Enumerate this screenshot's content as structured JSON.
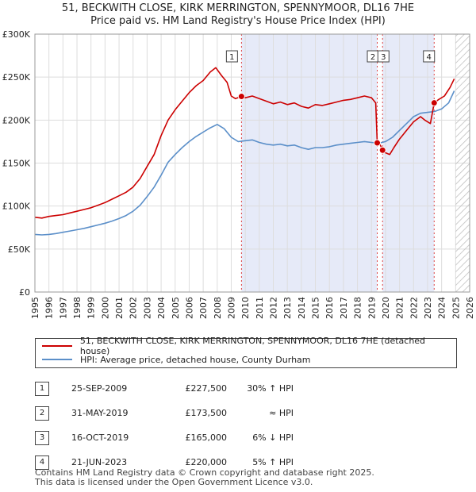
{
  "header": {
    "title_line1": "51, BECKWITH CLOSE, KIRK MERRINGTON, SPENNYMOOR, DL16 7HE",
    "title_line2": "Price paid vs. HM Land Registry's House Price Index (HPI)"
  },
  "chart_data": {
    "type": "line",
    "title": "51, BECKWITH CLOSE, KIRK MERRINGTON, SPENNYMOOR, DL16 7HE — Price paid vs. HM Land Registry's House Price Index (HPI)",
    "xlim": [
      1995,
      2026
    ],
    "ylim": [
      0,
      300000
    ],
    "x_ticks": [
      "1995",
      "1996",
      "1997",
      "1998",
      "1999",
      "2000",
      "2001",
      "2002",
      "2003",
      "2004",
      "2005",
      "2006",
      "2007",
      "2008",
      "2009",
      "2010",
      "2011",
      "2012",
      "2013",
      "2014",
      "2015",
      "2016",
      "2017",
      "2018",
      "2019",
      "2020",
      "2021",
      "2022",
      "2023",
      "2024",
      "2025",
      "2026"
    ],
    "y_ticks": [
      {
        "value": 0,
        "label": "£0"
      },
      {
        "value": 50000,
        "label": "£50K"
      },
      {
        "value": 100000,
        "label": "£100K"
      },
      {
        "value": 150000,
        "label": "£150K"
      },
      {
        "value": 200000,
        "label": "£200K"
      },
      {
        "value": 250000,
        "label": "£250K"
      },
      {
        "value": 300000,
        "label": "£300K"
      }
    ],
    "grid": true,
    "forecast_start": 2025.0,
    "shaded_ranges": [
      [
        2009.73,
        2019.41
      ],
      [
        2019.79,
        2023.47
      ]
    ],
    "series": [
      {
        "name": "51, BECKWITH CLOSE, KIRK MERRINGTON, SPENNYMOOR, DL16 7HE (detached house)",
        "color": "#cc0000",
        "points": [
          [
            1995.0,
            87000
          ],
          [
            1995.5,
            86000
          ],
          [
            1996.0,
            88000
          ],
          [
            1996.5,
            89000
          ],
          [
            1997.0,
            90000
          ],
          [
            1997.5,
            92000
          ],
          [
            1998.0,
            94000
          ],
          [
            1998.5,
            96000
          ],
          [
            1999.0,
            98000
          ],
          [
            1999.5,
            101000
          ],
          [
            2000.0,
            104000
          ],
          [
            2000.5,
            108000
          ],
          [
            2001.0,
            112000
          ],
          [
            2001.5,
            116000
          ],
          [
            2002.0,
            122000
          ],
          [
            2002.5,
            132000
          ],
          [
            2003.0,
            146000
          ],
          [
            2003.5,
            160000
          ],
          [
            2004.0,
            182000
          ],
          [
            2004.5,
            200000
          ],
          [
            2005.0,
            212000
          ],
          [
            2005.5,
            222000
          ],
          [
            2006.0,
            232000
          ],
          [
            2006.5,
            240000
          ],
          [
            2007.0,
            246000
          ],
          [
            2007.5,
            256000
          ],
          [
            2007.9,
            261000
          ],
          [
            2008.3,
            252000
          ],
          [
            2008.7,
            244000
          ],
          [
            2009.0,
            228000
          ],
          [
            2009.3,
            225000
          ],
          [
            2009.73,
            227500
          ],
          [
            2010.0,
            226000
          ],
          [
            2010.5,
            228000
          ],
          [
            2011.0,
            225000
          ],
          [
            2011.5,
            222000
          ],
          [
            2012.0,
            219000
          ],
          [
            2012.5,
            221000
          ],
          [
            2013.0,
            218000
          ],
          [
            2013.5,
            220000
          ],
          [
            2014.0,
            216000
          ],
          [
            2014.5,
            214000
          ],
          [
            2015.0,
            218000
          ],
          [
            2015.5,
            217000
          ],
          [
            2016.0,
            219000
          ],
          [
            2016.5,
            221000
          ],
          [
            2017.0,
            223000
          ],
          [
            2017.5,
            224000
          ],
          [
            2018.0,
            226000
          ],
          [
            2018.5,
            228000
          ],
          [
            2019.0,
            226000
          ],
          [
            2019.3,
            220000
          ],
          [
            2019.41,
            173500
          ],
          [
            2019.6,
            172000
          ],
          [
            2019.79,
            165000
          ],
          [
            2020.0,
            162000
          ],
          [
            2020.3,
            160000
          ],
          [
            2020.6,
            168000
          ],
          [
            2021.0,
            178000
          ],
          [
            2021.5,
            188000
          ],
          [
            2022.0,
            198000
          ],
          [
            2022.5,
            204000
          ],
          [
            2022.8,
            200000
          ],
          [
            2023.2,
            196000
          ],
          [
            2023.47,
            220000
          ],
          [
            2023.8,
            224000
          ],
          [
            2024.2,
            228000
          ],
          [
            2024.6,
            238000
          ],
          [
            2024.9,
            248000
          ]
        ]
      },
      {
        "name": "HPI: Average price, detached house, County Durham",
        "color": "#5b8fc9",
        "points": [
          [
            1995.0,
            67000
          ],
          [
            1995.5,
            66500
          ],
          [
            1996.0,
            67000
          ],
          [
            1996.5,
            68000
          ],
          [
            1997.0,
            69500
          ],
          [
            1997.5,
            71000
          ],
          [
            1998.0,
            72500
          ],
          [
            1998.5,
            74000
          ],
          [
            1999.0,
            76000
          ],
          [
            1999.5,
            78000
          ],
          [
            2000.0,
            80000
          ],
          [
            2000.5,
            82500
          ],
          [
            2001.0,
            85500
          ],
          [
            2001.5,
            89000
          ],
          [
            2002.0,
            94000
          ],
          [
            2002.5,
            101000
          ],
          [
            2003.0,
            111000
          ],
          [
            2003.5,
            122000
          ],
          [
            2004.0,
            136000
          ],
          [
            2004.5,
            151000
          ],
          [
            2005.0,
            160000
          ],
          [
            2005.5,
            168000
          ],
          [
            2006.0,
            175000
          ],
          [
            2006.5,
            181000
          ],
          [
            2007.0,
            186000
          ],
          [
            2007.5,
            191000
          ],
          [
            2008.0,
            195000
          ],
          [
            2008.5,
            190000
          ],
          [
            2009.0,
            180000
          ],
          [
            2009.5,
            175000
          ],
          [
            2010.0,
            176000
          ],
          [
            2010.5,
            177000
          ],
          [
            2011.0,
            174000
          ],
          [
            2011.5,
            172000
          ],
          [
            2012.0,
            171000
          ],
          [
            2012.5,
            172000
          ],
          [
            2013.0,
            170000
          ],
          [
            2013.5,
            171000
          ],
          [
            2014.0,
            168000
          ],
          [
            2014.5,
            166000
          ],
          [
            2015.0,
            168000
          ],
          [
            2015.5,
            168000
          ],
          [
            2016.0,
            169000
          ],
          [
            2016.5,
            171000
          ],
          [
            2017.0,
            172000
          ],
          [
            2017.5,
            173000
          ],
          [
            2018.0,
            174000
          ],
          [
            2018.5,
            175000
          ],
          [
            2019.0,
            174000
          ],
          [
            2019.5,
            173000
          ],
          [
            2020.0,
            175000
          ],
          [
            2020.5,
            180000
          ],
          [
            2021.0,
            188000
          ],
          [
            2021.5,
            196000
          ],
          [
            2022.0,
            204000
          ],
          [
            2022.5,
            208000
          ],
          [
            2023.0,
            209000
          ],
          [
            2023.5,
            210000
          ],
          [
            2024.0,
            213000
          ],
          [
            2024.5,
            220000
          ],
          [
            2024.9,
            234000
          ]
        ]
      }
    ],
    "markers": [
      {
        "label": "1",
        "x": 2009.73,
        "y": 227500
      },
      {
        "label": "2",
        "x": 2019.41,
        "y": 173500
      },
      {
        "label": "3",
        "x": 2019.79,
        "y": 165000
      },
      {
        "label": "4",
        "x": 2023.47,
        "y": 220000
      }
    ]
  },
  "legend": {
    "property_label": "51, BECKWITH CLOSE, KIRK MERRINGTON, SPENNYMOOR, DL16 7HE (detached house)",
    "hpi_label": "HPI: Average price, detached house, County Durham"
  },
  "sales": [
    {
      "num": "1",
      "date": "25-SEP-2009",
      "price": "£227,500",
      "hpi": "30% ↑ HPI"
    },
    {
      "num": "2",
      "date": "31-MAY-2019",
      "price": "£173,500",
      "hpi": "≈ HPI"
    },
    {
      "num": "3",
      "date": "16-OCT-2019",
      "price": "£165,000",
      "hpi": "6% ↓ HPI"
    },
    {
      "num": "4",
      "date": "21-JUN-2023",
      "price": "£220,000",
      "hpi": "5% ↑ HPI"
    }
  ],
  "footer": {
    "line1": "Contains HM Land Registry data © Crown copyright and database right 2025.",
    "line2": "This data is licensed under the Open Government Licence v3.0."
  }
}
